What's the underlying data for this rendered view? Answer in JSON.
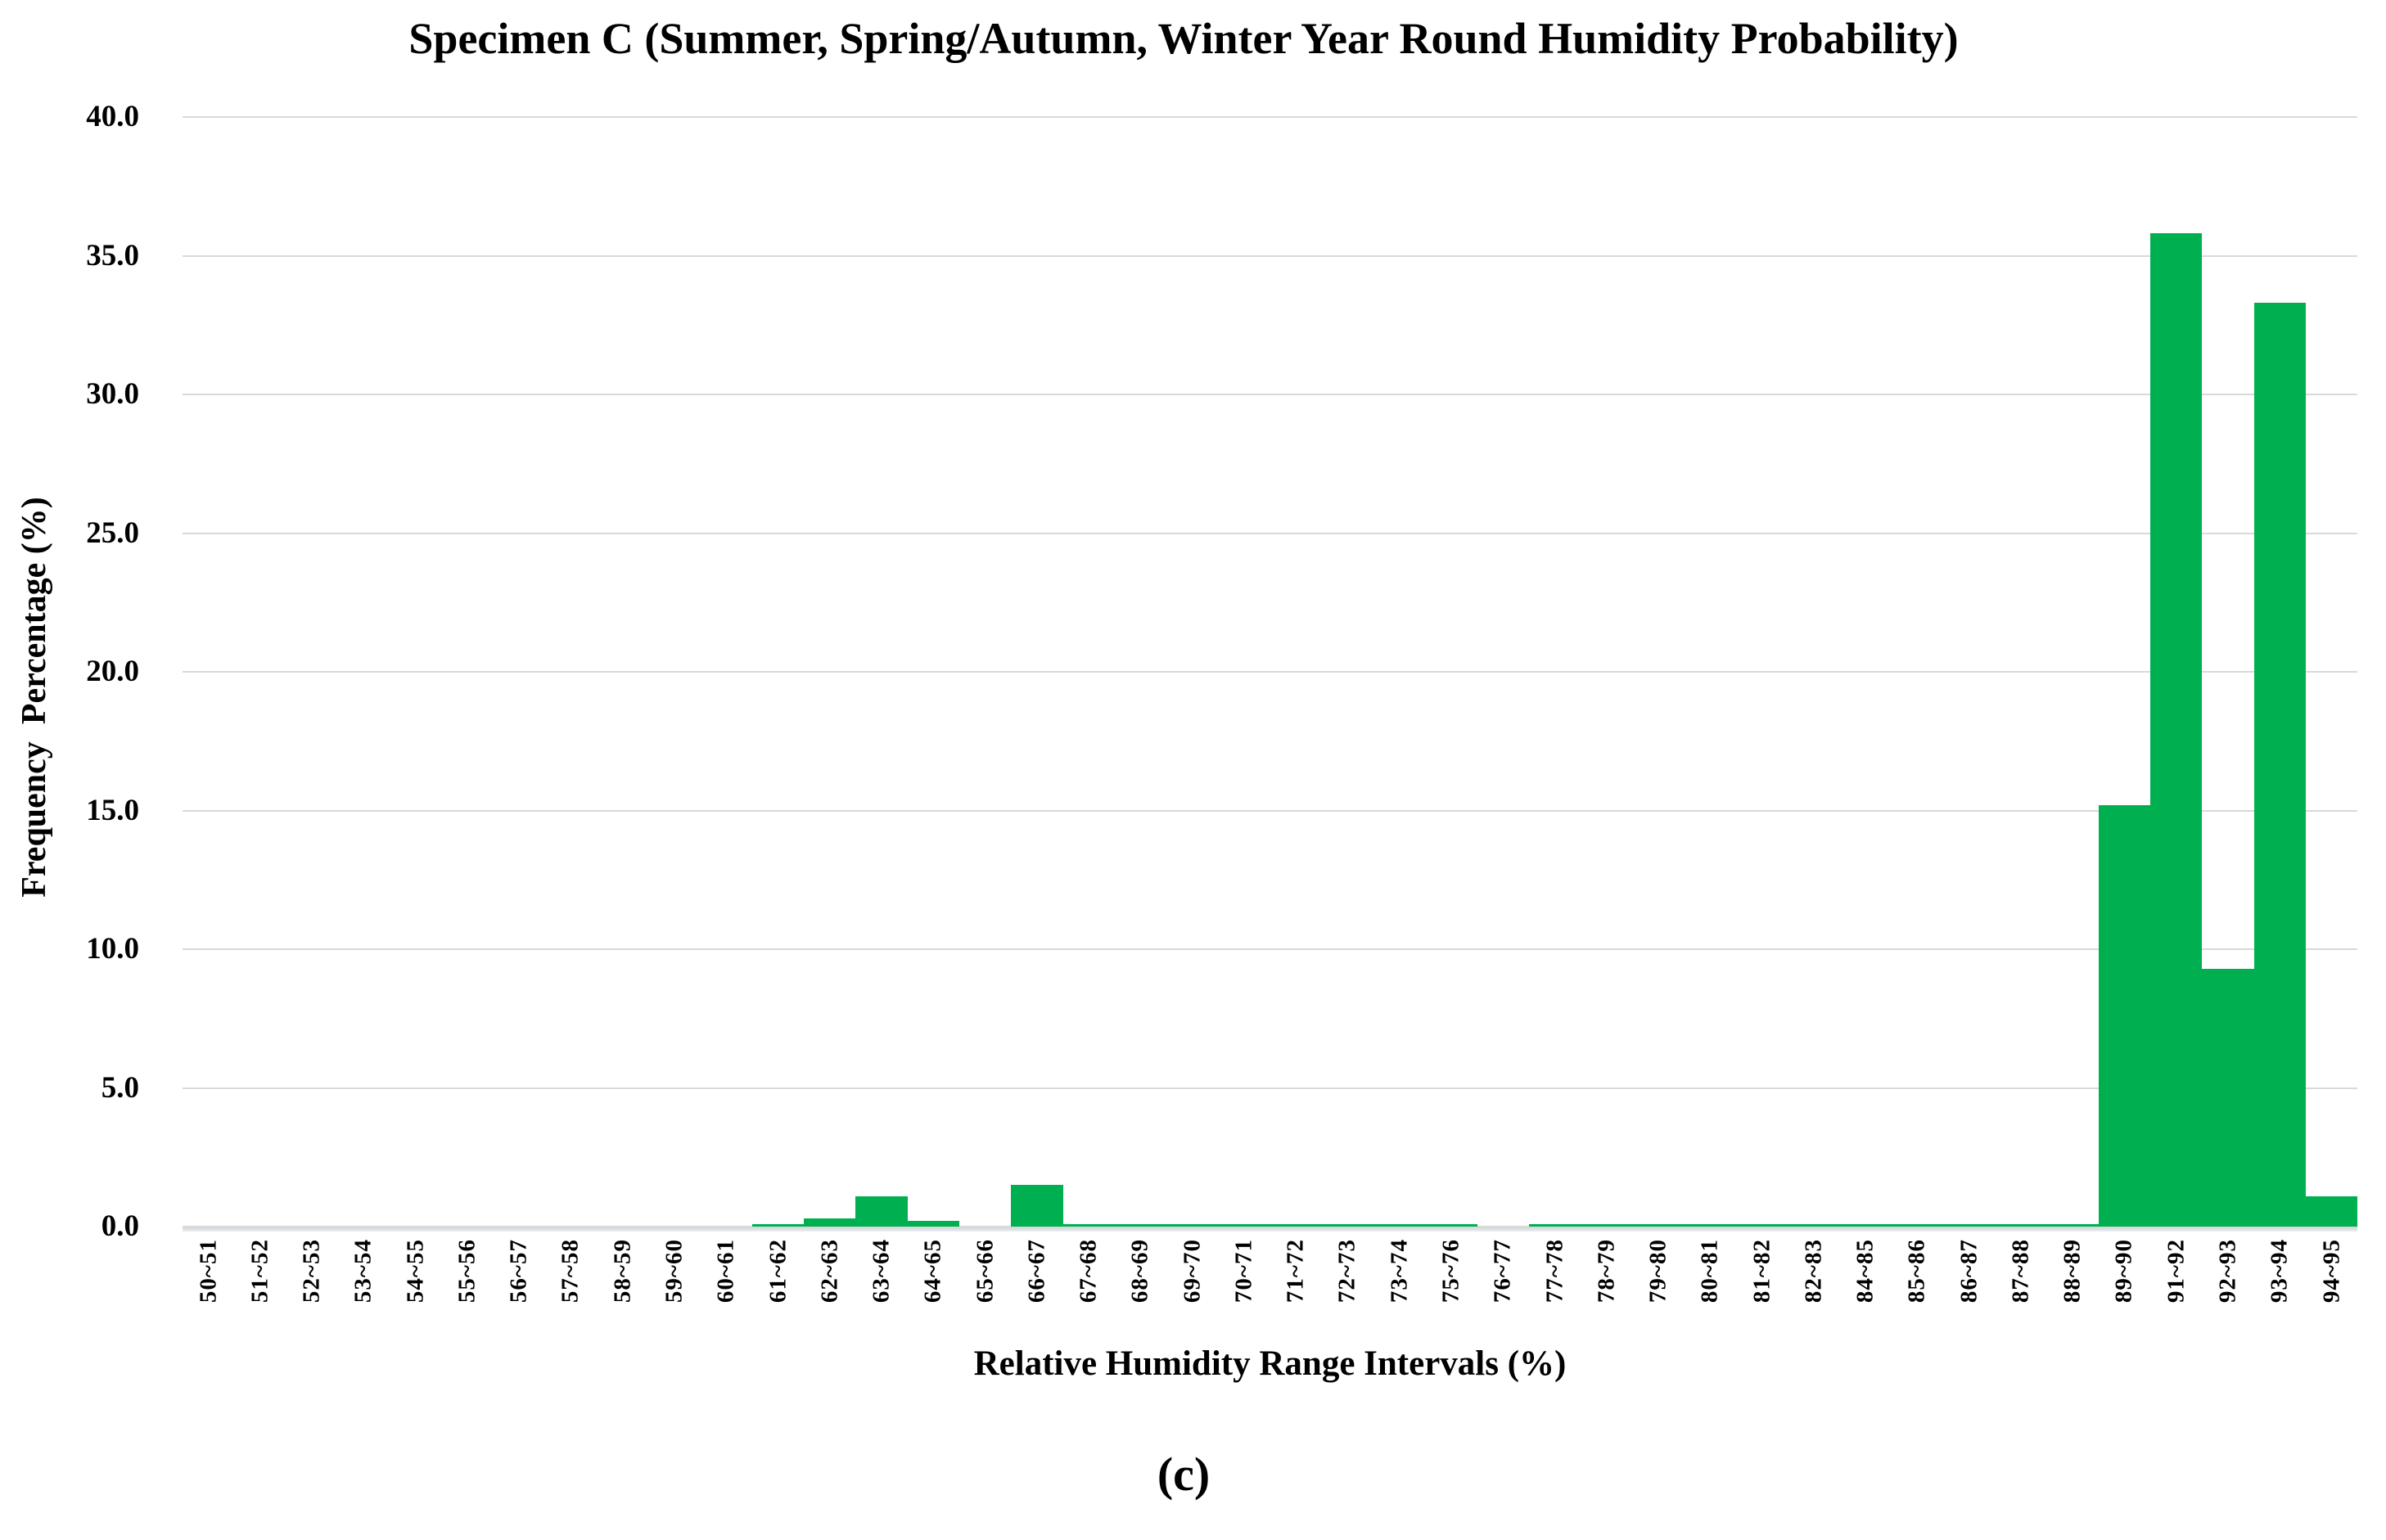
{
  "title": "Specimen C (Summer, Spring/Autumn, Winter Year Round Humidity Probability)",
  "caption": "(c)",
  "axes": {
    "x_title": "Relative Humidity Range Intervals (%)",
    "y_title": "Frequency  Percentage (%)",
    "y_ticks": [
      "40.0",
      "35.0",
      "30.0",
      "25.0",
      "20.0",
      "15.0",
      "10.0",
      "5.0",
      "0.0"
    ]
  },
  "colors": {
    "bar": "#00B050",
    "gridline": "#d9d9d9"
  },
  "chart_data": {
    "type": "bar",
    "title": "Specimen C (Summer, Spring/Autumn, Winter Year Round Humidity Probability)",
    "xlabel": "Relative Humidity Range Intervals (%)",
    "ylabel": "Frequency Percentage (%)",
    "ylim": [
      0,
      40
    ],
    "ytick_step": 5,
    "grid": true,
    "legend_position": "none",
    "bar_color": "#00B050",
    "categories": [
      "50~51",
      "51~52",
      "52~53",
      "53~54",
      "54~55",
      "55~56",
      "56~57",
      "57~58",
      "58~59",
      "59~60",
      "60~61",
      "61~62",
      "62~63",
      "63~64",
      "64~65",
      "65~66",
      "66~67",
      "67~68",
      "68~69",
      "69~70",
      "70~71",
      "71~72",
      "72~73",
      "73~74",
      "75~76",
      "76~77",
      "77~78",
      "78~79",
      "79~80",
      "80~81",
      "81~82",
      "82~83",
      "84~85",
      "85~86",
      "86~87",
      "87~88",
      "88~89",
      "89~90",
      "91~92",
      "92~93",
      "93~94",
      "94~95"
    ],
    "values": [
      0,
      0,
      0,
      0,
      0,
      0,
      0,
      0,
      0,
      0,
      0,
      0.1,
      0.3,
      1.1,
      0.2,
      0,
      1.5,
      0.1,
      0.1,
      0.1,
      0.1,
      0.1,
      0.1,
      0.1,
      0.1,
      0,
      0.1,
      0.1,
      0.1,
      0.1,
      0.1,
      0.1,
      0.1,
      0.1,
      0.1,
      0.1,
      0.1,
      15.2,
      35.8,
      9.3,
      33.3,
      1.1
    ]
  }
}
